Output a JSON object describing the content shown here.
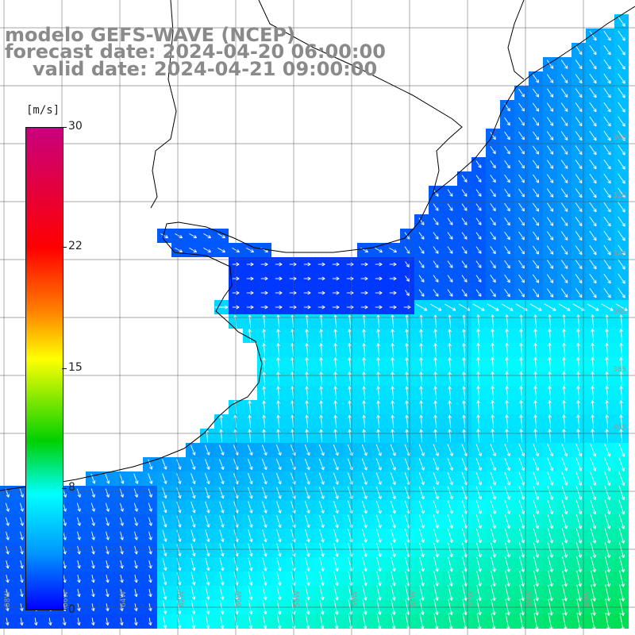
{
  "header": {
    "line1": "modelo GEFS-WAVE (NCEP)",
    "line2": "forecast date: 2024-04-20 06:00:00",
    "line3": "valid date: 2024-04-21 09:00:00"
  },
  "colorbar": {
    "unit": "[m/s]",
    "min": 0,
    "max": 30,
    "ticks": [
      "30",
      "22",
      "15",
      "8",
      "0"
    ],
    "colors": [
      "#0000ff",
      "#0099ff",
      "#00ffff",
      "#00d000",
      "#ffff00",
      "#ff8000",
      "#ff0000",
      "#c8007e"
    ]
  },
  "map": {
    "lat_labels": [
      "30S",
      "32S",
      "34S",
      "36S",
      "38S",
      "40S"
    ],
    "lon_labels": [
      "68W",
      "66W",
      "64W",
      "62W",
      "60W",
      "58W",
      "56W",
      "54W",
      "52W",
      "50W",
      "48W"
    ],
    "land_color": "#ffffff",
    "coast_color": "#000000",
    "arrow_color": "#ffffff"
  }
}
